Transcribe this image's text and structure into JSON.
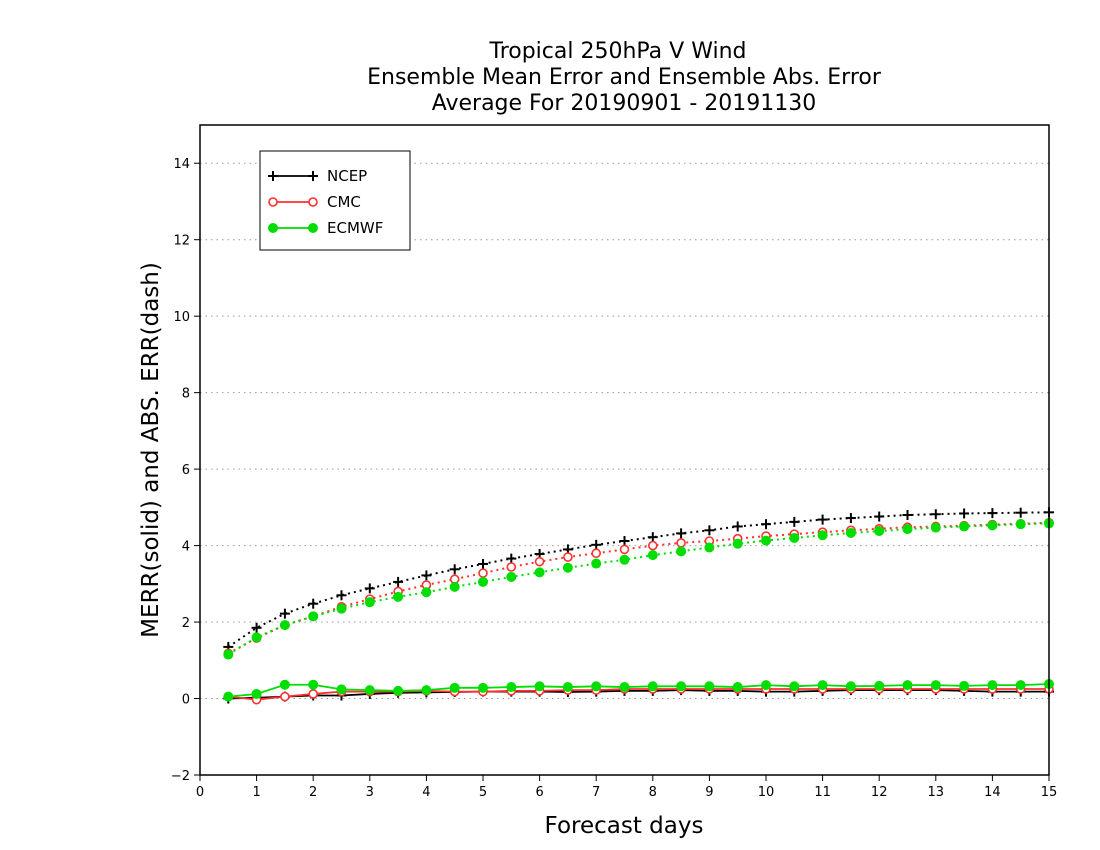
{
  "chart_data": {
    "type": "line",
    "title": [
      "Tropical 250hPa V Wind",
      "Ensemble Mean Error and Ensemble Abs. Error",
      "Average For 20190901 - 20191130"
    ],
    "xlabel": "Forecast days",
    "ylabel": "MERR(solid) and ABS. ERR(dash)",
    "xlim": [
      0,
      15
    ],
    "ylim": [
      -2,
      15
    ],
    "xticks": [
      0,
      1,
      2,
      3,
      4,
      5,
      6,
      7,
      8,
      9,
      10,
      11,
      12,
      13,
      14,
      15
    ],
    "yticks": [
      -2,
      0,
      2,
      4,
      6,
      8,
      10,
      12,
      14
    ],
    "grid": "horizontal dotted",
    "legend_position": "top-left",
    "x": [
      0.5,
      1,
      1.5,
      2,
      2.5,
      3,
      3.5,
      4,
      4.5,
      5,
      5.5,
      6,
      6.5,
      7,
      7.5,
      8,
      8.5,
      9,
      9.5,
      10,
      10.5,
      11,
      11.5,
      12,
      12.5,
      13,
      13.5,
      14,
      14.5,
      15
    ],
    "series": [
      {
        "name": "NCEP",
        "color": "#000000",
        "marker": "plus",
        "mean_error": [
          0.0,
          0.02,
          0.05,
          0.08,
          0.08,
          0.12,
          0.15,
          0.16,
          0.17,
          0.18,
          0.18,
          0.18,
          0.17,
          0.18,
          0.2,
          0.2,
          0.22,
          0.2,
          0.2,
          0.18,
          0.18,
          0.2,
          0.22,
          0.22,
          0.22,
          0.22,
          0.2,
          0.18,
          0.18,
          0.18
        ],
        "abs_error": [
          1.35,
          1.85,
          2.22,
          2.48,
          2.7,
          2.88,
          3.05,
          3.22,
          3.38,
          3.52,
          3.66,
          3.78,
          3.9,
          4.02,
          4.12,
          4.22,
          4.32,
          4.4,
          4.5,
          4.56,
          4.62,
          4.68,
          4.72,
          4.76,
          4.8,
          4.82,
          4.84,
          4.85,
          4.86,
          4.87
        ]
      },
      {
        "name": "CMC",
        "color": "#ff3030",
        "marker": "open-circle",
        "mean_error": [
          0.05,
          -0.03,
          0.05,
          0.12,
          0.18,
          0.18,
          0.18,
          0.2,
          0.18,
          0.18,
          0.2,
          0.2,
          0.22,
          0.22,
          0.25,
          0.25,
          0.25,
          0.25,
          0.25,
          0.25,
          0.25,
          0.25,
          0.25,
          0.25,
          0.25,
          0.25,
          0.25,
          0.25,
          0.25,
          0.25
        ],
        "abs_error": [
          1.18,
          1.58,
          1.92,
          2.15,
          2.4,
          2.6,
          2.8,
          2.97,
          3.12,
          3.28,
          3.44,
          3.58,
          3.7,
          3.8,
          3.9,
          4.0,
          4.07,
          4.12,
          4.18,
          4.25,
          4.3,
          4.35,
          4.4,
          4.44,
          4.48,
          4.5,
          4.52,
          4.55,
          4.57,
          4.6
        ]
      },
      {
        "name": "ECMWF",
        "color": "#00dd00",
        "marker": "filled-circle",
        "mean_error": [
          0.05,
          0.12,
          0.36,
          0.36,
          0.24,
          0.22,
          0.2,
          0.22,
          0.28,
          0.28,
          0.3,
          0.32,
          0.3,
          0.32,
          0.3,
          0.32,
          0.32,
          0.32,
          0.3,
          0.35,
          0.32,
          0.35,
          0.32,
          0.33,
          0.35,
          0.35,
          0.33,
          0.35,
          0.35,
          0.38
        ],
        "abs_error": [
          1.15,
          1.6,
          1.92,
          2.15,
          2.35,
          2.52,
          2.66,
          2.78,
          2.92,
          3.05,
          3.18,
          3.3,
          3.42,
          3.53,
          3.63,
          3.75,
          3.85,
          3.95,
          4.05,
          4.13,
          4.2,
          4.27,
          4.33,
          4.38,
          4.43,
          4.47,
          4.5,
          4.53,
          4.56,
          4.58
        ]
      }
    ]
  }
}
